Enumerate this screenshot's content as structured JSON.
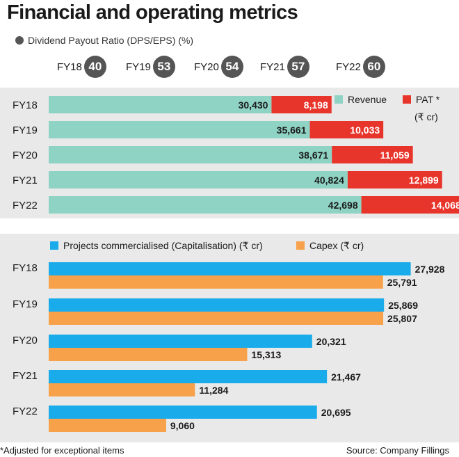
{
  "title": "Financial and operating metrics",
  "dividend_payout": {
    "label": "Dividend Payout Ratio (DPS/EPS) (%)",
    "items": [
      {
        "year": "FY18",
        "value": "40"
      },
      {
        "year": "FY19",
        "value": "53"
      },
      {
        "year": "FY20",
        "value": "54"
      },
      {
        "year": "FY21",
        "value": "57"
      },
      {
        "year": "FY22",
        "value": "60"
      }
    ]
  },
  "colors": {
    "revenue": "#8fd3c4",
    "pat": "#e8352b",
    "projects": "#1aabea",
    "capex": "#f7a24b",
    "badge": "#555555",
    "panel": "#e9e9e9"
  },
  "chart_data": [
    {
      "type": "bar",
      "orientation": "horizontal",
      "stacked": true,
      "categories": [
        "FY18",
        "FY19",
        "FY20",
        "FY21",
        "FY22"
      ],
      "series": [
        {
          "name": "Revenue",
          "values": [
            30430,
            35661,
            38671,
            40824,
            42698
          ],
          "labels": [
            "30,430",
            "35,661",
            "38,671",
            "40,824",
            "42,698"
          ]
        },
        {
          "name": "PAT *",
          "values": [
            8198,
            10033,
            11059,
            12899,
            14068
          ],
          "labels": [
            "8,198",
            "10,033",
            "11,059",
            "12,899",
            "14,068"
          ]
        }
      ],
      "unit_note": "(₹ cr)",
      "legend": "top-right",
      "grid": false
    },
    {
      "type": "bar",
      "orientation": "horizontal",
      "stacked": false,
      "categories": [
        "FY18",
        "FY19",
        "FY20",
        "FY21",
        "FY22"
      ],
      "series": [
        {
          "name": "Projects commercialised (Capitalisation) (₹ cr)",
          "values": [
            27928,
            25869,
            20321,
            21467,
            20695
          ],
          "labels": [
            "27,928",
            "25,869",
            "20,321",
            "21,467",
            "20,695"
          ]
        },
        {
          "name": "Capex (₹ cr)",
          "values": [
            25791,
            25807,
            15313,
            11284,
            9060
          ],
          "labels": [
            "25,791",
            "25,807",
            "15,313",
            "11,284",
            "9,060"
          ]
        }
      ],
      "legend": "top",
      "grid": false
    }
  ],
  "footer": {
    "note": "*Adjusted for exceptional items",
    "source": "Source: Company Fillings"
  }
}
